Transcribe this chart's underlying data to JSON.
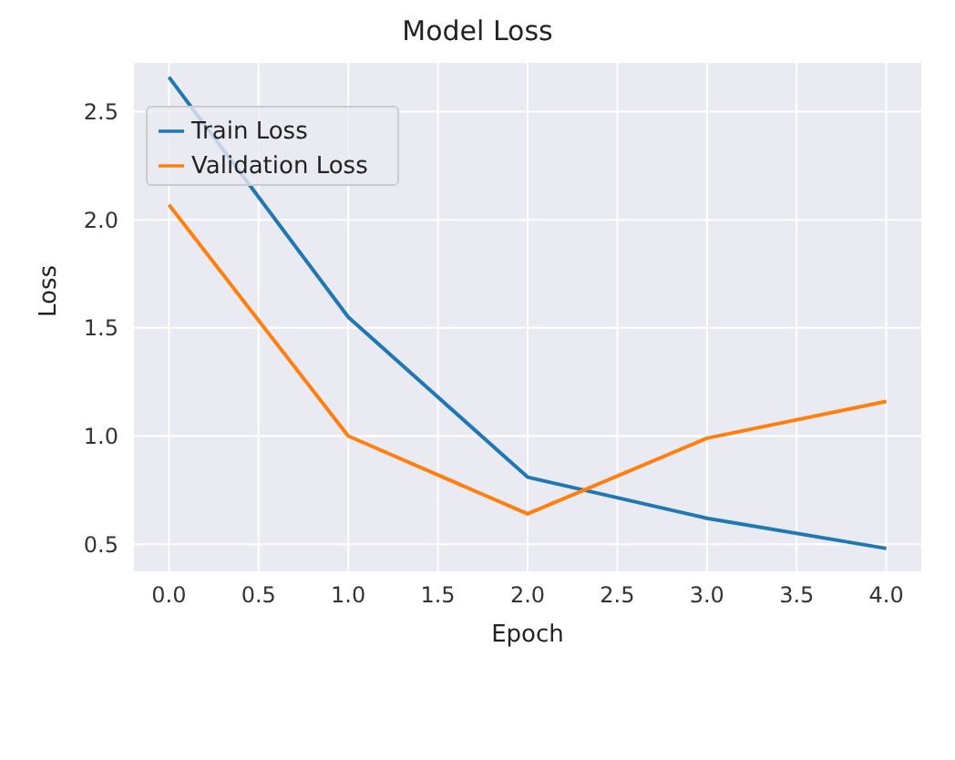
{
  "chart_data": {
    "type": "line",
    "title": "Model Loss",
    "xlabel": "Epoch",
    "ylabel": "Loss",
    "x": [
      0,
      1,
      2,
      3,
      4
    ],
    "series": [
      {
        "name": "Train Loss",
        "color": "#1f77b4",
        "values": [
          2.66,
          1.55,
          0.81,
          0.62,
          0.48
        ]
      },
      {
        "name": "Validation Loss",
        "color": "#ff7f0e",
        "values": [
          2.07,
          1.0,
          0.64,
          0.99,
          1.16
        ]
      }
    ],
    "xlim": [
      -0.2,
      4.2
    ],
    "xticks": [
      {
        "value": 0,
        "label": "0.0"
      },
      {
        "value": 0.5,
        "label": "0.5"
      },
      {
        "value": 1,
        "label": "1.0"
      },
      {
        "value": 1.5,
        "label": "1.5"
      },
      {
        "value": 2,
        "label": "2.0"
      },
      {
        "value": 2.5,
        "label": "2.5"
      },
      {
        "value": 3,
        "label": "3.0"
      },
      {
        "value": 3.5,
        "label": "3.5"
      },
      {
        "value": 4,
        "label": "4.0"
      }
    ],
    "ylim": [
      0.37,
      2.73
    ],
    "yticks": [
      {
        "value": 0.5,
        "label": "0.5"
      },
      {
        "value": 1,
        "label": "1.0"
      },
      {
        "value": 1.5,
        "label": "1.5"
      },
      {
        "value": 2,
        "label": "2.0"
      },
      {
        "value": 2.5,
        "label": "2.5"
      }
    ],
    "grid": true,
    "legend": "top left",
    "marker": "none",
    "line_style": "solid"
  }
}
